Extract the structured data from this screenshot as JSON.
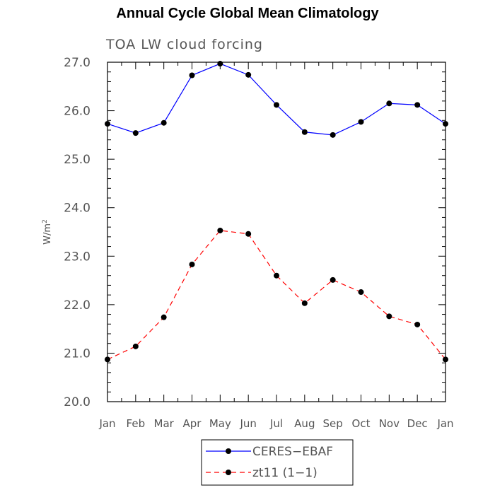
{
  "chart_data": {
    "type": "line",
    "title": "Annual Cycle Global Mean Climatology",
    "subtitle": "TOA LW cloud forcing",
    "ylabel": "W/m",
    "ylabel_superscript": "2",
    "ylim": [
      20.0,
      27.0
    ],
    "yticks": [
      "20.0",
      "21.0",
      "22.0",
      "23.0",
      "24.0",
      "25.0",
      "26.0",
      "27.0"
    ],
    "categories": [
      "Jan",
      "Feb",
      "Mar",
      "Apr",
      "May",
      "Jun",
      "Jul",
      "Aug",
      "Sep",
      "Oct",
      "Nov",
      "Dec",
      "Jan"
    ],
    "series": [
      {
        "name": "CERES−EBAF",
        "color": "#0000ff",
        "dash": "solid",
        "values": [
          25.73,
          25.54,
          25.75,
          26.73,
          26.97,
          26.74,
          26.12,
          25.56,
          25.5,
          25.77,
          26.15,
          26.12,
          25.73
        ]
      },
      {
        "name": "zt11 (1−1)",
        "color": "#ff0000",
        "dash": "dashed",
        "values": [
          20.87,
          21.14,
          21.74,
          22.83,
          23.53,
          23.46,
          22.6,
          22.03,
          22.51,
          22.26,
          21.76,
          21.59,
          20.87
        ]
      }
    ],
    "legend_position": "bottom-center"
  }
}
